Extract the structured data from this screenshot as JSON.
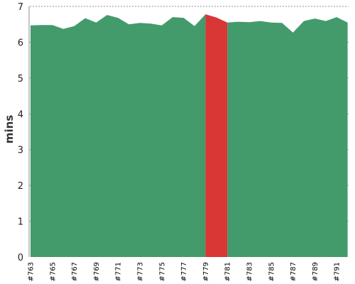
{
  "chart_data": {
    "type": "area",
    "ylabel": "mins",
    "ylim": [
      0,
      7
    ],
    "yticks": [
      "0",
      "1",
      "2",
      "3",
      "4",
      "5",
      "6",
      "7"
    ],
    "grid": true,
    "colors": {
      "normal": "#439B6B",
      "highlight": "#D93636"
    },
    "x": [
      "#763",
      "#764",
      "#765",
      "#766",
      "#767",
      "#768",
      "#769",
      "#770",
      "#771",
      "#772",
      "#773",
      "#774",
      "#775",
      "#776",
      "#777",
      "#778",
      "#779",
      "#780",
      "#781",
      "#782",
      "#783",
      "#784",
      "#785",
      "#786",
      "#787",
      "#788",
      "#789",
      "#790",
      "#791",
      "#792"
    ],
    "xtick_labels": [
      "#763",
      "#765",
      "#767",
      "#769",
      "#771",
      "#773",
      "#775",
      "#777",
      "#779",
      "#781",
      "#783",
      "#785",
      "#787",
      "#789",
      "#791"
    ],
    "values": [
      6.47,
      6.48,
      6.48,
      6.37,
      6.45,
      6.67,
      6.55,
      6.76,
      6.68,
      6.5,
      6.54,
      6.52,
      6.47,
      6.7,
      6.68,
      6.45,
      6.78,
      6.69,
      6.55,
      6.57,
      6.56,
      6.59,
      6.55,
      6.54,
      6.27,
      6.59,
      6.66,
      6.59,
      6.7,
      6.55
    ],
    "highlight_range": [
      "#779",
      "#781"
    ]
  }
}
